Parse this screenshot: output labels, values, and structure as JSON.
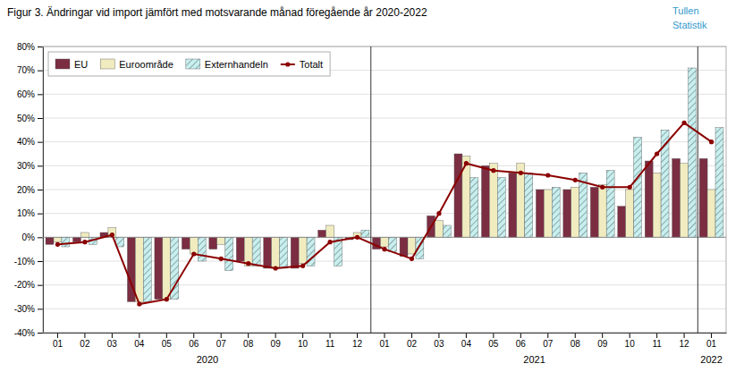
{
  "chart_data": {
    "type": "bar",
    "title": "Figur 3. Ändringar vid import jämfört med motsvarande månad föregående år 2020-2022",
    "annotations": [
      "Tullen",
      "Statistik"
    ],
    "categories": [
      "01",
      "02",
      "03",
      "04",
      "05",
      "06",
      "07",
      "08",
      "09",
      "10",
      "11",
      "12",
      "01",
      "02",
      "03",
      "04",
      "05",
      "06",
      "07",
      "08",
      "09",
      "10",
      "11",
      "12",
      "01"
    ],
    "category_groups": [
      {
        "label": "2020",
        "count": 12
      },
      {
        "label": "2021",
        "count": 12
      },
      {
        "label": "2022",
        "count": 1
      }
    ],
    "series": [
      {
        "name": "EU",
        "type": "bar",
        "color": "#7B2D42",
        "values": [
          -3,
          -2,
          2,
          -27,
          -26,
          -5,
          -5,
          -10,
          -13,
          -13,
          3,
          -1,
          -5,
          -8,
          9,
          35,
          30,
          27,
          20,
          20,
          21,
          13,
          32,
          33,
          33
        ]
      },
      {
        "name": "Euroområde",
        "type": "bar",
        "color": "#F0ECC0",
        "values": [
          -2,
          2,
          4,
          -27,
          -26,
          -7,
          -3,
          -12,
          -13,
          -11,
          5,
          2,
          -4,
          -7,
          7,
          34,
          31,
          31,
          20,
          21,
          22,
          20,
          27,
          31,
          20
        ]
      },
      {
        "name": "Externhandeln",
        "type": "bar",
        "color": "#C8EFEF",
        "values": [
          -4,
          -3,
          -4,
          -27,
          -26,
          -10,
          -14,
          -12,
          -13,
          -12,
          -12,
          3,
          -6,
          -9,
          5,
          25,
          25,
          27,
          21,
          27,
          28,
          42,
          45,
          71,
          46
        ]
      },
      {
        "name": "Totalt",
        "type": "line",
        "marker": "circle",
        "color": "#8B0000",
        "values": [
          -3,
          -2,
          1,
          -28,
          -26,
          -7,
          -9,
          -11,
          -13,
          -12,
          -2,
          0,
          -5,
          -9,
          10,
          31,
          28,
          27,
          26,
          24,
          21,
          21,
          35,
          48,
          40
        ]
      }
    ],
    "ylim": [
      -40,
      80
    ],
    "yticks": [
      {
        "value": -40,
        "label": "-40%"
      },
      {
        "value": -30,
        "label": "-30%"
      },
      {
        "value": -20,
        "label": "-20%"
      },
      {
        "value": -10,
        "label": "-10%"
      },
      {
        "value": 0,
        "label": "0%"
      },
      {
        "value": 10,
        "label": "10%"
      },
      {
        "value": 20,
        "label": "20%"
      },
      {
        "value": 30,
        "label": "30%"
      },
      {
        "value": 40,
        "label": "40%"
      },
      {
        "value": 50,
        "label": "50%"
      },
      {
        "value": 60,
        "label": "60%"
      },
      {
        "value": 70,
        "label": "70%"
      },
      {
        "value": 80,
        "label": "80%"
      }
    ],
    "grid": true,
    "legend": "upper left"
  }
}
